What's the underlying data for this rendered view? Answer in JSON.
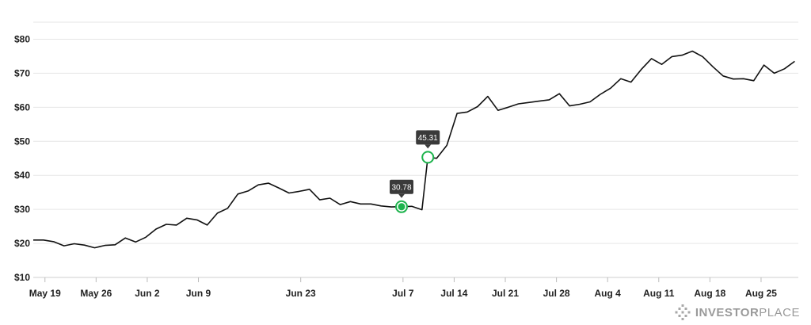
{
  "chart_data": {
    "type": "line",
    "title": "",
    "xlabel": "",
    "ylabel": "",
    "ylim": [
      10,
      85
    ],
    "y_ticks": [
      10,
      20,
      30,
      40,
      50,
      60,
      70,
      80
    ],
    "y_tick_labels": [
      "$10",
      "$20",
      "$30",
      "$40",
      "$50",
      "$60",
      "$70",
      "$80"
    ],
    "grid": true,
    "x_ticks": [
      {
        "label": "May 19",
        "day": 0
      },
      {
        "label": "May 26",
        "day": 7
      },
      {
        "label": "Jun 2",
        "day": 14
      },
      {
        "label": "Jun 9",
        "day": 21
      },
      {
        "label": "Jun 23",
        "day": 35
      },
      {
        "label": "Jul 7",
        "day": 49
      },
      {
        "label": "Jul 14",
        "day": 56
      },
      {
        "label": "Jul 21",
        "day": 63
      },
      {
        "label": "Jul 28",
        "day": 70
      },
      {
        "label": "Aug 4",
        "day": 77
      },
      {
        "label": "Aug 11",
        "day": 84
      },
      {
        "label": "Aug 18",
        "day": 91
      },
      {
        "label": "Aug 25",
        "day": 98
      }
    ],
    "x_range": [
      -1.6,
      103.1
    ],
    "series": [
      {
        "color": "#111111",
        "points": [
          [
            -1.6,
            21.0
          ],
          [
            -0.2,
            21.0
          ],
          [
            1.2,
            20.5
          ],
          [
            2.6,
            19.3
          ],
          [
            4.0,
            19.9
          ],
          [
            5.4,
            19.5
          ],
          [
            6.8,
            18.7
          ],
          [
            8.2,
            19.4
          ],
          [
            9.6,
            19.6
          ],
          [
            11.0,
            21.6
          ],
          [
            12.4,
            20.4
          ],
          [
            13.8,
            21.8
          ],
          [
            15.2,
            24.2
          ],
          [
            16.6,
            25.6
          ],
          [
            18.0,
            25.4
          ],
          [
            19.4,
            27.4
          ],
          [
            20.8,
            26.9
          ],
          [
            22.2,
            25.4
          ],
          [
            23.6,
            28.9
          ],
          [
            25.0,
            30.3
          ],
          [
            26.4,
            34.5
          ],
          [
            27.8,
            35.4
          ],
          [
            29.2,
            37.2
          ],
          [
            30.6,
            37.7
          ],
          [
            32.0,
            36.3
          ],
          [
            33.4,
            34.8
          ],
          [
            34.8,
            35.3
          ],
          [
            36.2,
            35.9
          ],
          [
            37.6,
            32.8
          ],
          [
            39.0,
            33.3
          ],
          [
            40.4,
            31.4
          ],
          [
            41.8,
            32.3
          ],
          [
            43.2,
            31.6
          ],
          [
            44.6,
            31.6
          ],
          [
            46.0,
            31.0
          ],
          [
            47.4,
            30.7
          ],
          [
            48.8,
            30.8
          ],
          [
            50.2,
            30.9
          ],
          [
            51.6,
            29.9
          ],
          [
            52.4,
            45.3
          ],
          [
            53.6,
            45.0
          ],
          [
            55.0,
            48.8
          ],
          [
            56.4,
            58.2
          ],
          [
            57.8,
            58.6
          ],
          [
            59.2,
            60.2
          ],
          [
            60.6,
            63.2
          ],
          [
            62.0,
            59.1
          ],
          [
            63.4,
            60.0
          ],
          [
            64.8,
            61.0
          ],
          [
            66.2,
            61.4
          ],
          [
            67.6,
            61.8
          ],
          [
            69.0,
            62.2
          ],
          [
            70.4,
            64.0
          ],
          [
            71.8,
            60.4
          ],
          [
            73.2,
            60.9
          ],
          [
            74.6,
            61.6
          ],
          [
            76.0,
            63.8
          ],
          [
            77.4,
            65.6
          ],
          [
            78.8,
            68.4
          ],
          [
            80.2,
            67.4
          ],
          [
            81.6,
            71.1
          ],
          [
            83.0,
            74.3
          ],
          [
            84.4,
            72.6
          ],
          [
            85.8,
            74.9
          ],
          [
            87.2,
            75.3
          ],
          [
            88.6,
            76.5
          ],
          [
            90.0,
            74.9
          ],
          [
            91.4,
            71.9
          ],
          [
            92.8,
            69.2
          ],
          [
            94.2,
            68.3
          ],
          [
            95.6,
            68.4
          ],
          [
            97.0,
            67.8
          ],
          [
            98.4,
            72.4
          ],
          [
            99.8,
            70.0
          ],
          [
            101.2,
            71.3
          ],
          [
            102.6,
            73.5
          ]
        ]
      }
    ],
    "annotations": [
      {
        "label": "30.78",
        "day": 48.8,
        "value": 30.78,
        "marker": "filled",
        "color": "#1db34c"
      },
      {
        "label": "45.31",
        "day": 52.4,
        "value": 45.31,
        "marker": "hollow",
        "color": "#1db34c"
      }
    ]
  },
  "brand": {
    "name_part1": "INVESTOR",
    "name_part2": "PLACE"
  }
}
